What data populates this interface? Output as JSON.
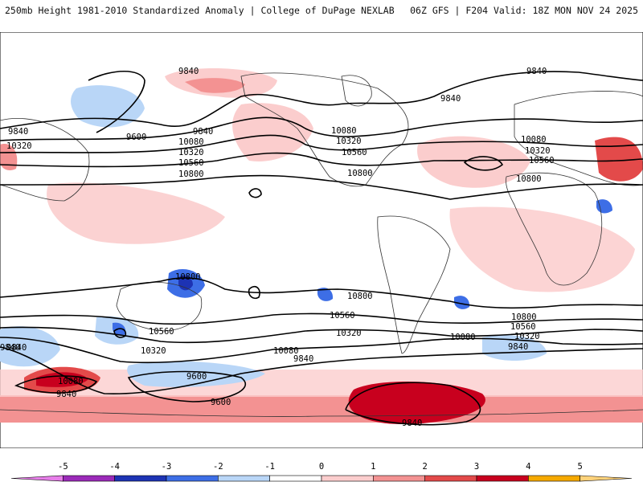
{
  "header": {
    "title_left": "250mb Height 1981-2010 Standardized Anomaly | College of DuPage NEXLAB",
    "title_right": "06Z GFS | F204 Valid: 18Z MON NOV 24 2025"
  },
  "legend": {
    "ticks": [
      "-5",
      "-4",
      "-3",
      "-2",
      "-1",
      "0",
      "1",
      "2",
      "3",
      "4",
      "5"
    ],
    "colors": [
      "#e77ee9",
      "#9b2ab9",
      "#1d33b4",
      "#3d6ee6",
      "#b9d6f7",
      "#ffffff",
      "#fbcdcd",
      "#f39292",
      "#e34a4a",
      "#c8001e",
      "#f5a900",
      "#ffd27a"
    ]
  },
  "contour_labels": [
    {
      "text": "9840",
      "key": "a"
    },
    {
      "text": "9840",
      "key": "b"
    },
    {
      "text": "9840",
      "key": "c"
    },
    {
      "text": "9600",
      "key": "d"
    },
    {
      "text": "9840",
      "key": "e"
    },
    {
      "text": "10080",
      "key": "f"
    },
    {
      "text": "10320",
      "key": "g"
    },
    {
      "text": "10560",
      "key": "h"
    },
    {
      "text": "10800",
      "key": "i"
    },
    {
      "text": "10320",
      "key": "j"
    },
    {
      "text": "10080",
      "key": "k"
    },
    {
      "text": "10320",
      "key": "l"
    },
    {
      "text": "10560",
      "key": "m"
    },
    {
      "text": "10800",
      "key": "n"
    },
    {
      "text": "9840",
      "key": "o"
    },
    {
      "text": "10080",
      "key": "p"
    },
    {
      "text": "10320",
      "key": "q"
    },
    {
      "text": "10560",
      "key": "r"
    },
    {
      "text": "10800",
      "key": "s"
    },
    {
      "text": "10800",
      "key": "t"
    },
    {
      "text": "10800",
      "key": "u"
    },
    {
      "text": "10560",
      "key": "v"
    },
    {
      "text": "10320",
      "key": "w"
    },
    {
      "text": "10080",
      "key": "x"
    },
    {
      "text": "9840",
      "key": "y"
    },
    {
      "text": "10320",
      "key": "z"
    },
    {
      "text": "10560",
      "key": "aa"
    },
    {
      "text": "10800",
      "key": "ab"
    },
    {
      "text": "10080",
      "key": "ac"
    },
    {
      "text": "9840",
      "key": "ad"
    },
    {
      "text": "9840",
      "key": "ae"
    },
    {
      "text": "10080",
      "key": "af"
    },
    {
      "text": "9840",
      "key": "ag"
    },
    {
      "text": "9600",
      "key": "ah"
    },
    {
      "text": "9600",
      "key": "ai"
    },
    {
      "text": "9840",
      "key": "aj"
    },
    {
      "text": "10560",
      "key": "ak"
    },
    {
      "text": "10320",
      "key": "al"
    },
    {
      "text": "9840",
      "key": "am"
    }
  ]
}
